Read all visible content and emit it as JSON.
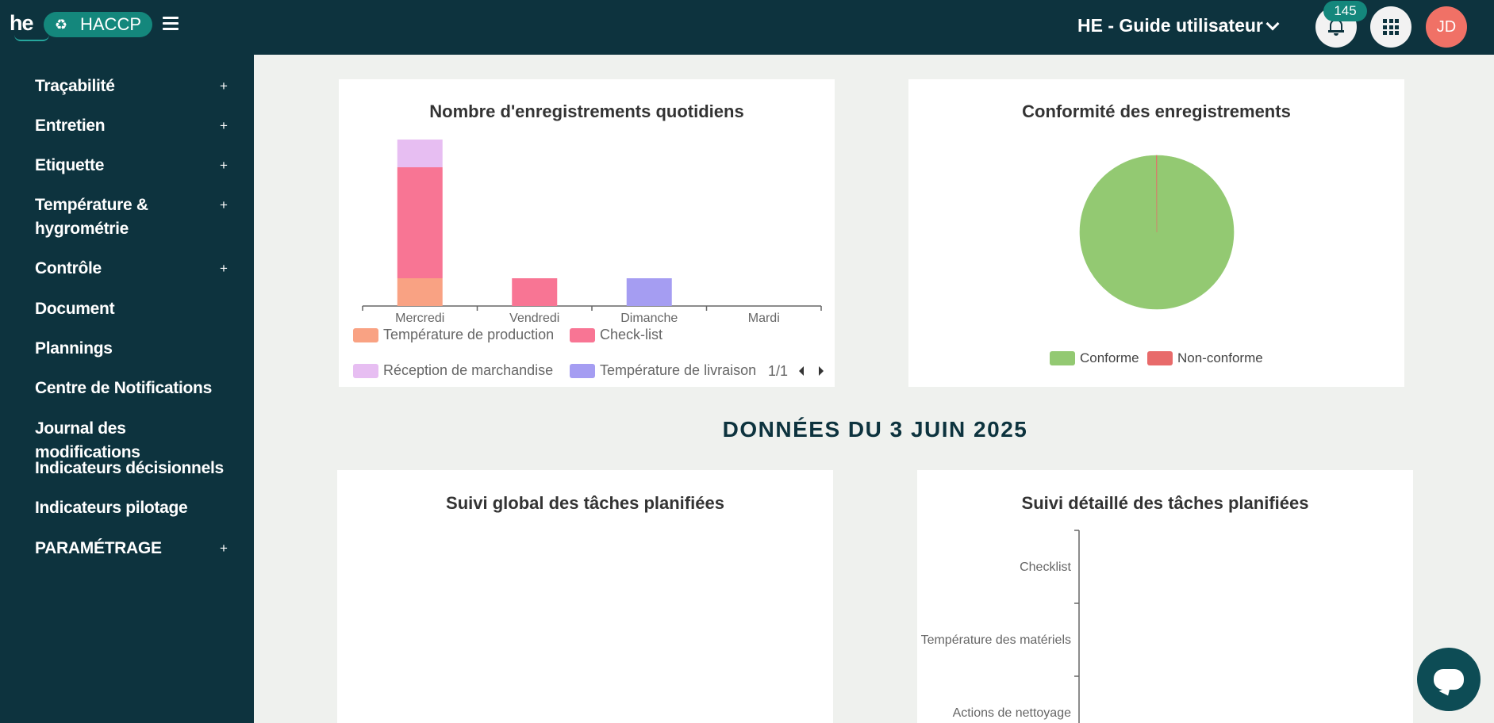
{
  "topbar": {
    "logo_text": "he",
    "app_name": "HACCP",
    "organization": "HE - Guide utilisateur",
    "notifications_count": "145",
    "user_initials": "JD",
    "colors": {
      "bar": "#0d333e",
      "accent": "#14877c",
      "avatar": "#f07166"
    }
  },
  "sidebar": {
    "items": [
      {
        "label": "Traçabilité",
        "expandable": "+"
      },
      {
        "label": "Entretien",
        "expandable": "+"
      },
      {
        "label": "Etiquette",
        "expandable": "+"
      },
      {
        "label": "Température &",
        "label2": "hygrométrie",
        "expandable": "+"
      },
      {
        "label": "Contrôle",
        "expandable": "+"
      },
      {
        "label": "Document"
      },
      {
        "label": "Plannings"
      },
      {
        "label": "Centre de Notifications"
      },
      {
        "label": "Journal des modifications"
      },
      {
        "label": "Indicateurs décisionnels"
      },
      {
        "label": "Indicateurs pilotage"
      },
      {
        "label": "PARAMÉTRAGE",
        "expandable": "+"
      }
    ]
  },
  "daily_chart": {
    "title": "Nombre d'enregistrements quotidiens",
    "pagination": "1/1",
    "legend": [
      {
        "name": "Température de production",
        "color": "#f9a283"
      },
      {
        "name": "Check-list",
        "color": "#f87594"
      },
      {
        "name": "Réception de marchandise",
        "color": "#e7bef2"
      },
      {
        "name": "Température de livraison",
        "color": "#a59df2"
      }
    ]
  },
  "conformity_chart": {
    "title": "Conformité des enregistrements",
    "legend": [
      {
        "name": "Conforme",
        "color": "#93c972"
      },
      {
        "name": "Non-conforme",
        "color": "#e86a6a"
      }
    ]
  },
  "section_heading": "DONNÉES DU 3 JUIN 2025",
  "global_tasks": {
    "title": "Suivi global des tâches planifiées"
  },
  "detail_tasks": {
    "title": "Suivi détaillé des tâches planifiées",
    "categories": [
      "Checklist",
      "Température des matériels",
      "Actions de nettoyage"
    ]
  },
  "chart_data": [
    {
      "type": "bar",
      "stacked": true,
      "title": "Nombre d'enregistrements quotidiens",
      "categories": [
        "Mercredi",
        "Vendredi",
        "Dimanche",
        "Mardi"
      ],
      "series": [
        {
          "name": "Température de production",
          "values": [
            1,
            0,
            0,
            0
          ]
        },
        {
          "name": "Check-list",
          "values": [
            4,
            1,
            0,
            0
          ]
        },
        {
          "name": "Réception de marchandise",
          "values": [
            1,
            0,
            0,
            0
          ]
        },
        {
          "name": "Température de livraison",
          "values": [
            0,
            0,
            1,
            0
          ]
        }
      ],
      "legend": "bottom"
    },
    {
      "type": "pie",
      "title": "Conformité des enregistrements",
      "slices": [
        {
          "name": "Conforme",
          "value": 99.9
        },
        {
          "name": "Non-conforme",
          "value": 0.1
        }
      ],
      "legend": "bottom"
    },
    {
      "type": "bar",
      "orientation": "horizontal",
      "title": "Suivi détaillé des tâches planifiées",
      "categories": [
        "Checklist",
        "Température des matériels",
        "Actions de nettoyage"
      ]
    }
  ]
}
